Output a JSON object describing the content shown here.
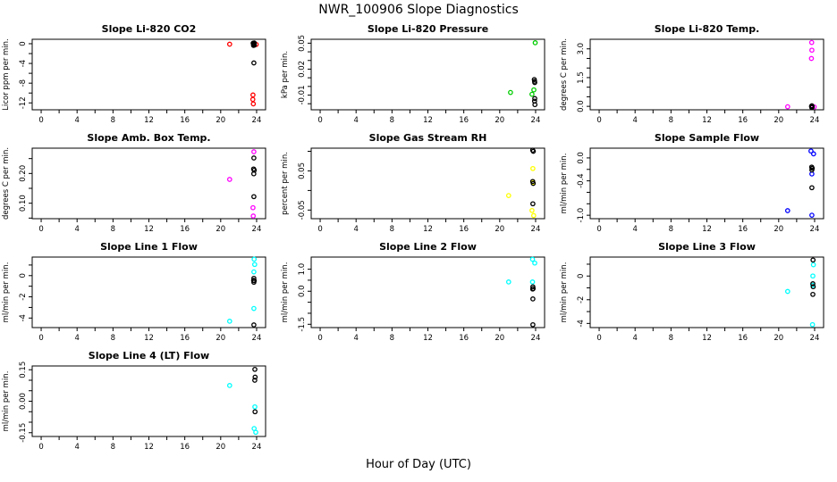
{
  "page": {
    "title": "NWR_100906  Slope Diagnostics",
    "xlabel": "Hour of Day (UTC)"
  },
  "colors": {
    "background": "#FFFFFF",
    "axis": "#000000",
    "black": "#000000",
    "red": "#FF0000",
    "green": "#00CD00",
    "magenta": "#FF00FF",
    "yellow": "#FFFF00",
    "blue": "#0000FF",
    "cyan": "#00FFFF"
  },
  "x_axis": {
    "lim": [
      -1,
      25
    ],
    "ticks": [
      0,
      2,
      4,
      6,
      8,
      10,
      12,
      14,
      16,
      18,
      20,
      22,
      24
    ],
    "labels": {
      "0": "0",
      "4": "4",
      "8": "8",
      "12": "12",
      "16": "16",
      "20": "20",
      "24": "24"
    }
  },
  "chart_data": [
    {
      "type": "scatter",
      "title": "Slope Li-820 CO2",
      "ylabel": "Licor ppm per min.",
      "ylim": [
        -13.4,
        0.9
      ],
      "yticks": [
        {
          "v": 0,
          "l": "0"
        },
        {
          "v": -2
        },
        {
          "v": -4,
          "l": "-4"
        },
        {
          "v": -6
        },
        {
          "v": -8,
          "l": "-8"
        },
        {
          "v": -10
        },
        {
          "v": -12,
          "l": "-12"
        }
      ],
      "series": [
        {
          "name": "flagged",
          "color": "red",
          "points": [
            [
              21.0,
              -0.1
            ],
            [
              23.95,
              -0.15
            ],
            [
              23.6,
              -10.4
            ],
            [
              23.58,
              -11.3
            ],
            [
              23.64,
              -12.2
            ]
          ]
        },
        {
          "name": "normal",
          "color": "black",
          "points": [
            [
              23.62,
              0.1
            ],
            [
              23.68,
              0.0
            ],
            [
              23.73,
              0.15
            ],
            [
              23.7,
              -0.2
            ],
            [
              23.66,
              -0.35
            ],
            [
              23.74,
              -0.3
            ],
            [
              23.69,
              0.05
            ],
            [
              23.7,
              -3.9
            ]
          ]
        }
      ]
    },
    {
      "type": "scatter",
      "title": "Slope Li-820 Pressure",
      "ylabel": "kPa per min.",
      "ylim": [
        -0.027,
        0.0545
      ],
      "yticks": [
        {
          "v": 0.05,
          "l": "0.05"
        },
        {
          "v": 0.04
        },
        {
          "v": 0.03
        },
        {
          "v": 0.02,
          "l": "0.02"
        },
        {
          "v": 0.01
        },
        {
          "v": 0.0
        },
        {
          "v": -0.01,
          "l": "-0.01"
        },
        {
          "v": -0.02
        }
      ],
      "series": [
        {
          "name": "flagged",
          "color": "green",
          "points": [
            [
              21.2,
              -0.007
            ],
            [
              23.95,
              0.0505
            ],
            [
              23.8,
              -0.004
            ],
            [
              23.6,
              -0.009
            ]
          ]
        },
        {
          "name": "normal",
          "color": "black",
          "points": [
            [
              23.85,
              0.008
            ],
            [
              23.9,
              0.0045
            ],
            [
              23.88,
              0.006
            ],
            [
              23.9,
              -0.014
            ],
            [
              23.88,
              -0.017
            ],
            [
              23.92,
              -0.021
            ]
          ]
        }
      ]
    },
    {
      "type": "scatter",
      "title": "Slope Li-820 Temp.",
      "ylabel": "degrees C per min.",
      "ylim": [
        -0.18,
        3.5
      ],
      "yticks": [
        {
          "v": 0.0,
          "l": "0.0"
        },
        {
          "v": 0.5
        },
        {
          "v": 1.0
        },
        {
          "v": 1.5,
          "l": "1.5"
        },
        {
          "v": 2.0
        },
        {
          "v": 2.5
        },
        {
          "v": 3.0,
          "l": "3.0"
        }
      ],
      "series": [
        {
          "name": "flagged",
          "color": "magenta",
          "points": [
            [
              21.0,
              -0.02
            ],
            [
              23.68,
              3.33
            ],
            [
              23.7,
              2.93
            ],
            [
              23.65,
              2.5
            ],
            [
              23.95,
              -0.03
            ]
          ]
        },
        {
          "name": "normal",
          "color": "black",
          "points": [
            [
              23.66,
              0.0
            ],
            [
              23.7,
              0.03
            ],
            [
              23.73,
              -0.03
            ],
            [
              23.69,
              -0.06
            ],
            [
              23.72,
              0.0
            ]
          ]
        }
      ]
    },
    {
      "type": "scatter",
      "title": "Slope Amb. Box Temp.",
      "ylabel": "degrees C per min.",
      "ylim": [
        0.048,
        0.285
      ],
      "yticks": [
        {
          "v": 0.25
        },
        {
          "v": 0.2,
          "l": "0.20"
        },
        {
          "v": 0.15
        },
        {
          "v": 0.1,
          "l": "0.10"
        },
        {
          "v": 0.05
        }
      ],
      "series": [
        {
          "name": "flagged",
          "color": "magenta",
          "points": [
            [
              21.0,
              0.18
            ],
            [
              23.7,
              0.273
            ],
            [
              23.6,
              0.085
            ],
            [
              23.63,
              0.057
            ]
          ]
        },
        {
          "name": "normal",
          "color": "black",
          "points": [
            [
              23.7,
              0.252
            ],
            [
              23.67,
              0.215
            ],
            [
              23.73,
              0.211
            ],
            [
              23.69,
              0.199
            ],
            [
              23.7,
              0.122
            ]
          ]
        }
      ]
    },
    {
      "type": "scatter",
      "title": "Slope Gas Stream RH",
      "ylabel": "percent per min.",
      "ylim": [
        -0.072,
        0.108
      ],
      "yticks": [
        {
          "v": 0.1
        },
        {
          "v": 0.05,
          "l": "0.05"
        },
        {
          "v": 0.0
        },
        {
          "v": -0.05,
          "l": "-0.05"
        }
      ],
      "series": [
        {
          "name": "flagged",
          "color": "yellow",
          "points": [
            [
              21.0,
              -0.013
            ],
            [
              23.7,
              0.056
            ],
            [
              23.7,
              0.021
            ],
            [
              23.6,
              -0.051
            ],
            [
              23.78,
              -0.064
            ]
          ]
        },
        {
          "name": "normal",
          "color": "black",
          "points": [
            [
              23.68,
              0.103
            ],
            [
              23.74,
              0.1
            ],
            [
              23.68,
              0.023
            ],
            [
              23.73,
              0.018
            ],
            [
              23.7,
              -0.034
            ]
          ]
        }
      ]
    },
    {
      "type": "scatter",
      "title": "Slope Sample Flow",
      "ylabel": "ml/min per min.",
      "ylim": [
        -1.06,
        0.17
      ],
      "yticks": [
        {
          "v": 0.0,
          "l": "0.0"
        },
        {
          "v": -0.2
        },
        {
          "v": -0.4,
          "l": "-0.4"
        },
        {
          "v": -0.6
        },
        {
          "v": -0.8
        },
        {
          "v": -1.0,
          "l": "-1.0"
        }
      ],
      "series": [
        {
          "name": "flagged",
          "color": "blue",
          "points": [
            [
              21.0,
              -0.92
            ],
            [
              23.6,
              0.12
            ],
            [
              23.88,
              0.07
            ],
            [
              23.7,
              -0.28
            ],
            [
              23.7,
              -1.0
            ]
          ]
        },
        {
          "name": "normal",
          "color": "black",
          "points": [
            [
              23.68,
              -0.16
            ],
            [
              23.73,
              -0.18
            ],
            [
              23.7,
              -0.21
            ],
            [
              23.7,
              -0.52
            ]
          ]
        }
      ]
    },
    {
      "type": "scatter",
      "title": "Slope Line 1 Flow",
      "ylabel": "ml/min per min.",
      "ylim": [
        -4.9,
        1.75
      ],
      "yticks": [
        {
          "v": 1
        },
        {
          "v": 0,
          "l": "0"
        },
        {
          "v": -1
        },
        {
          "v": -2,
          "l": "-2"
        },
        {
          "v": -3
        },
        {
          "v": -4,
          "l": "-4"
        }
      ],
      "series": [
        {
          "name": "flagged",
          "color": "cyan",
          "points": [
            [
              21.0,
              -4.3
            ],
            [
              23.72,
              1.55
            ],
            [
              23.78,
              1.05
            ],
            [
              23.7,
              0.35
            ],
            [
              23.7,
              -3.1
            ]
          ]
        },
        {
          "name": "normal",
          "color": "black",
          "points": [
            [
              23.7,
              -0.25
            ],
            [
              23.67,
              -0.45
            ],
            [
              23.73,
              -0.48
            ],
            [
              23.7,
              -0.62
            ],
            [
              23.7,
              -4.65
            ]
          ]
        }
      ]
    },
    {
      "type": "scatter",
      "title": "Slope Line 2 Flow",
      "ylabel": "ml/min per min.",
      "ylim": [
        -1.65,
        1.55
      ],
      "yticks": [
        {
          "v": 1.0,
          "l": "1.0"
        },
        {
          "v": 0.5
        },
        {
          "v": 0.0,
          "l": "0.0"
        },
        {
          "v": -0.5
        },
        {
          "v": -1.0
        },
        {
          "v": -1.5,
          "l": "-1.5"
        }
      ],
      "series": [
        {
          "name": "flagged",
          "color": "cyan",
          "points": [
            [
              21.0,
              0.42
            ],
            [
              23.66,
              1.45
            ],
            [
              23.9,
              1.28
            ],
            [
              23.66,
              0.42
            ]
          ]
        },
        {
          "name": "normal",
          "color": "black",
          "points": [
            [
              23.7,
              0.2
            ],
            [
              23.72,
              0.12
            ],
            [
              23.68,
              0.1
            ],
            [
              23.7,
              -0.35
            ],
            [
              23.7,
              -1.52
            ]
          ]
        }
      ]
    },
    {
      "type": "scatter",
      "title": "Slope Line 3 Flow",
      "ylabel": "ml/min per min.",
      "ylim": [
        -4.35,
        1.6
      ],
      "yticks": [
        {
          "v": 1
        },
        {
          "v": 0,
          "l": "0"
        },
        {
          "v": -1
        },
        {
          "v": -2,
          "l": "-2"
        },
        {
          "v": -3
        },
        {
          "v": -4,
          "l": "-4"
        }
      ],
      "series": [
        {
          "name": "flagged",
          "color": "cyan",
          "points": [
            [
              21.0,
              -1.3
            ],
            [
              23.86,
              0.95
            ],
            [
              23.8,
              0.0
            ],
            [
              23.78,
              -0.78
            ],
            [
              23.76,
              -4.1
            ]
          ]
        },
        {
          "name": "normal",
          "color": "black",
          "points": [
            [
              23.82,
              1.35
            ],
            [
              23.8,
              -0.65
            ],
            [
              23.84,
              -0.9
            ],
            [
              23.8,
              -1.55
            ]
          ]
        }
      ]
    },
    {
      "type": "scatter",
      "title": "Slope Line 4 (LT) Flow",
      "ylabel": "ml/min per min.",
      "ylim": [
        -0.168,
        0.168
      ],
      "yticks": [
        {
          "v": 0.15,
          "l": "0.15"
        },
        {
          "v": 0.1
        },
        {
          "v": 0.05
        },
        {
          "v": 0.0,
          "l": "0.00"
        },
        {
          "v": -0.05
        },
        {
          "v": -0.1
        },
        {
          "v": -0.15,
          "l": "-0.15"
        }
      ],
      "series": [
        {
          "name": "flagged",
          "color": "cyan",
          "points": [
            [
              21.0,
              0.075
            ],
            [
              23.8,
              -0.027
            ],
            [
              23.72,
              -0.13
            ],
            [
              23.9,
              -0.148
            ]
          ]
        },
        {
          "name": "normal",
          "color": "black",
          "points": [
            [
              23.8,
              0.152
            ],
            [
              23.83,
              0.115
            ],
            [
              23.79,
              0.1
            ],
            [
              23.82,
              -0.05
            ]
          ]
        }
      ]
    }
  ]
}
